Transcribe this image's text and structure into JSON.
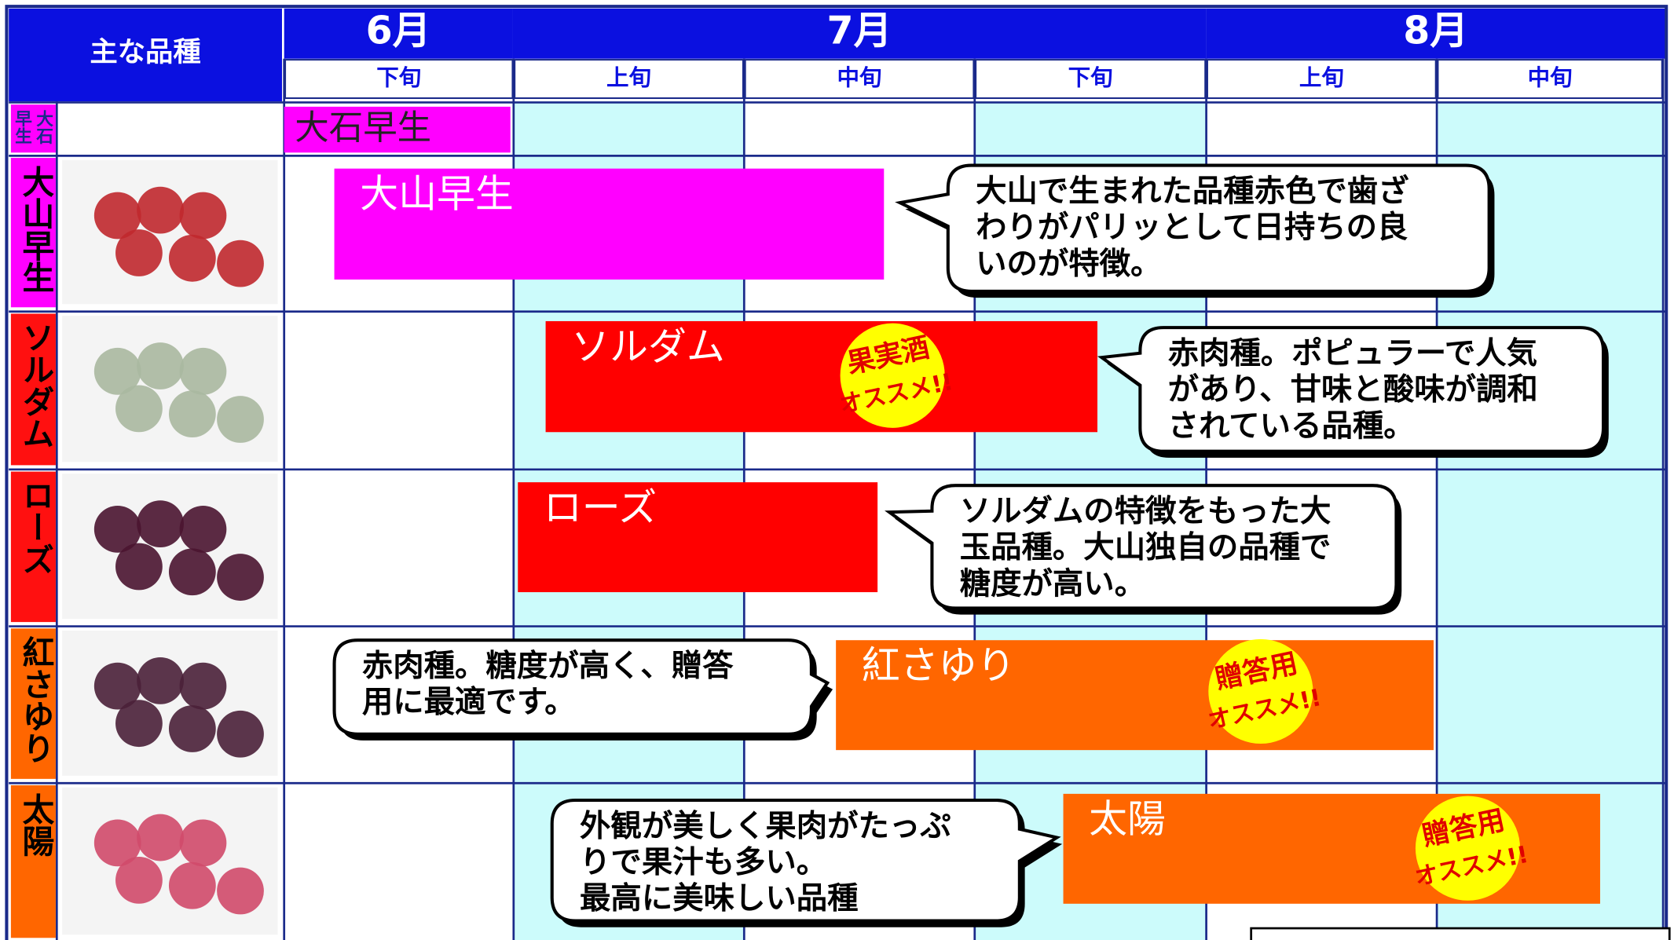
{
  "header": {
    "corner": "主な品種",
    "months": [
      "6月",
      "7月",
      "8月"
    ],
    "periods": [
      "下旬",
      "上旬",
      "中旬",
      "下旬",
      "上旬",
      "中旬"
    ]
  },
  "varieties": [
    {
      "side_label": [
        "大石",
        "早生"
      ],
      "bar_label": "大石早生"
    },
    {
      "side_label": "大山早生",
      "bar_label": "大山早生",
      "note": [
        "大山で生まれた品種赤色で歯ざ",
        "わりがパリッとして日持ちの良",
        "いのが特徴。"
      ]
    },
    {
      "side_label": "ソルダム",
      "bar_label": "ソルダム",
      "note": [
        "赤肉種。ポピュラーで人気",
        "があり、甘味と酸味が調和",
        "されている品種。"
      ],
      "badge": [
        "果実酒",
        "オススメ!!"
      ]
    },
    {
      "side_label": "ローズ",
      "bar_label": "ローズ",
      "note": [
        "ソルダムの特徴をもった大",
        "玉品種。大山独自の品種で",
        "糖度が高い。"
      ]
    },
    {
      "side_label": "紅さゆり",
      "bar_label": "紅さゆり",
      "note": [
        "赤肉種。糖度が高く、贈答",
        "用に最適です。"
      ],
      "badge": [
        "贈答用",
        "オススメ!!"
      ]
    },
    {
      "side_label": "太陽",
      "bar_label": "太陽",
      "note": [
        "外観が美しく果肉がたっぷ",
        "りで果汁も多い。",
        "最高に美味しい品種"
      ],
      "badge": [
        "贈答用",
        "オススメ!!"
      ]
    }
  ]
}
